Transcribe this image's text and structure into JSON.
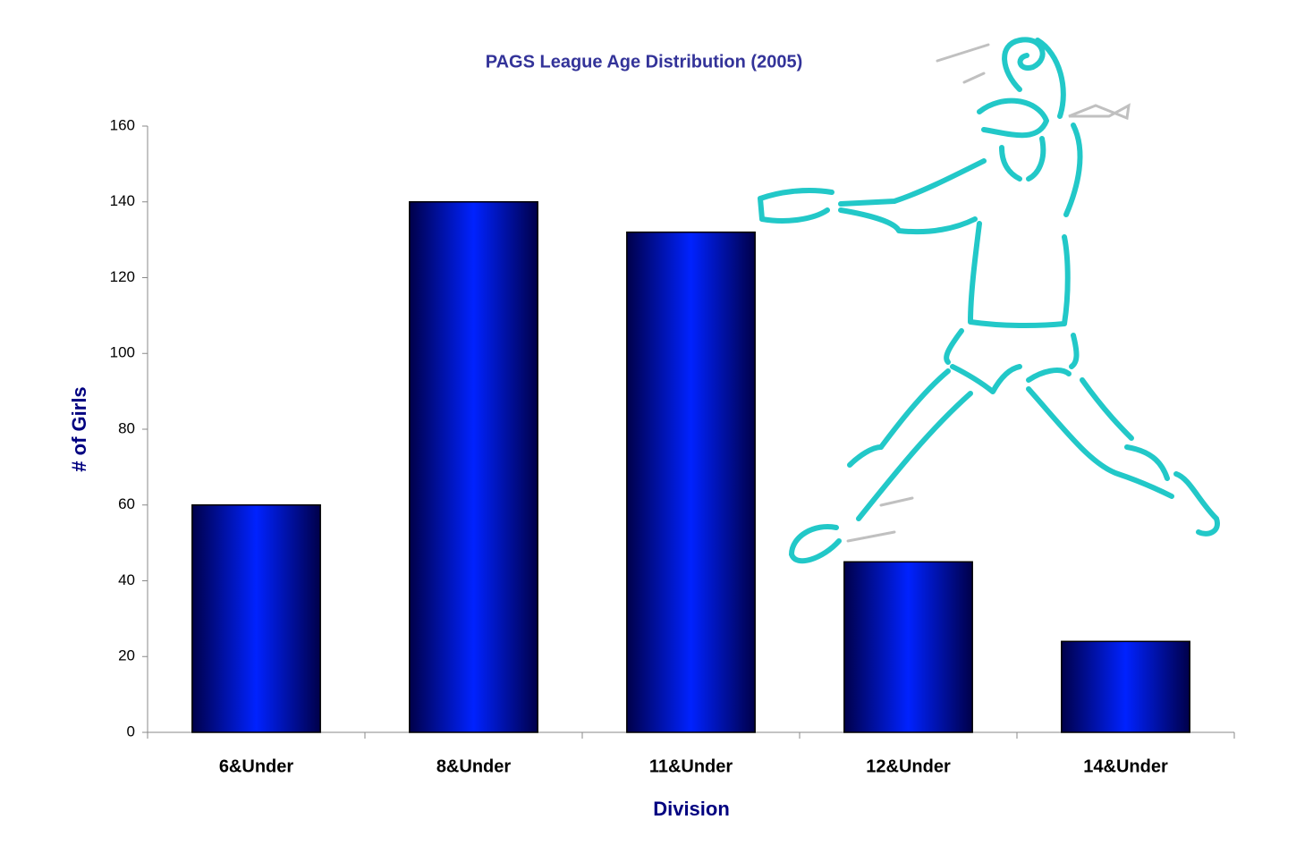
{
  "chart_data": {
    "type": "bar",
    "title": "PAGS League Age Distribution (2005)",
    "x_label": "Division",
    "y_label": "# of Girls",
    "categories": [
      "6&Under",
      "8&Under",
      "11&Under",
      "12&Under",
      "14&Under"
    ],
    "values": [
      60,
      140,
      132,
      45,
      24
    ],
    "color": "#0022ff",
    "ylim": [
      0,
      160
    ],
    "yticks": [
      0,
      20,
      40,
      60,
      80,
      100,
      120,
      140,
      160
    ]
  }
}
